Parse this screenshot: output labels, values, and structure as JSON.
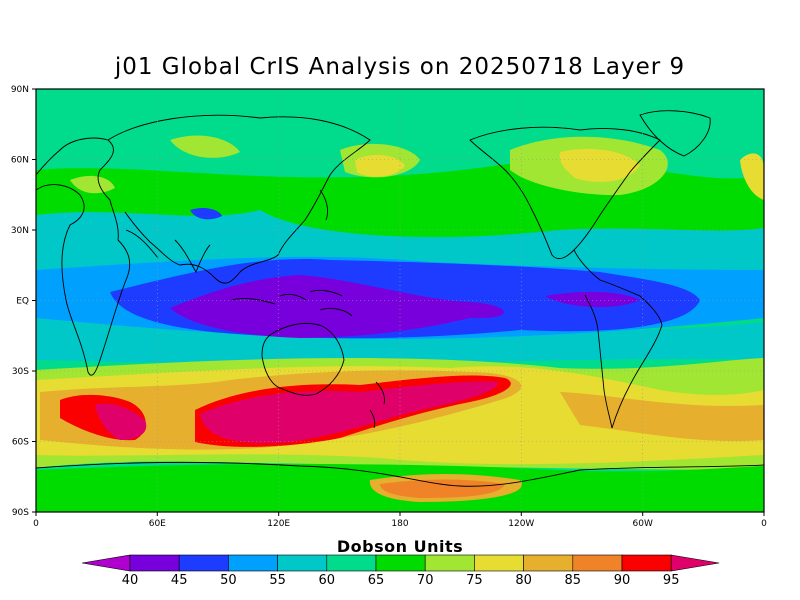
{
  "title": "j01 Global CrIS Analysis on 20250718 Layer 9",
  "colorbar": {
    "label": "Dobson Units",
    "ticks": [
      "40",
      "45",
      "50",
      "55",
      "60",
      "65",
      "70",
      "75",
      "80",
      "85",
      "90",
      "95"
    ],
    "colors": [
      "#b000d0",
      "#7800dc",
      "#1e3cff",
      "#00a0ff",
      "#00c8c8",
      "#00dc8c",
      "#00dc00",
      "#a0e632",
      "#e6dc32",
      "#e6af2d",
      "#f08228",
      "#fa0000",
      "#e0006a"
    ]
  },
  "map": {
    "lat_labels": [
      "90N",
      "60N",
      "30N",
      "EQ",
      "30S",
      "60S",
      "90S"
    ],
    "lon_labels": [
      "0",
      "60E",
      "120E",
      "180",
      "120W",
      "60W",
      "0"
    ]
  }
}
